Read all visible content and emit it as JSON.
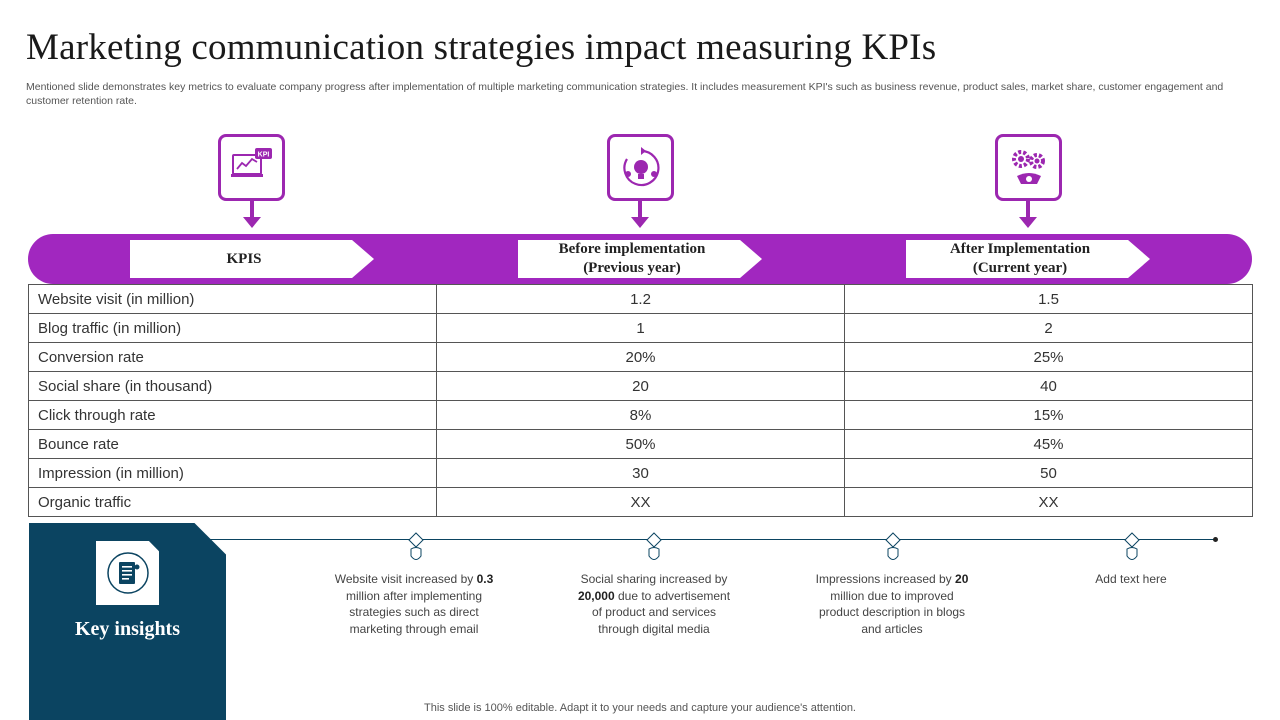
{
  "slide": {
    "title": "Marketing communication strategies impact measuring KPIs",
    "subtitle": "Mentioned slide demonstrates key metrics to evaluate company progress after implementation of multiple marketing communication strategies. It includes measurement KPI's such as business revenue, product sales, market share, customer engagement and customer retention rate.",
    "footer": "This slide is 100% editable. Adapt it to your needs and capture your audience's attention."
  },
  "icons": {
    "kpi_icon": "kpi-dashboard-icon",
    "kpi_icon_text": "KPI",
    "before_icon": "idea-cycle-icon",
    "after_icon": "gears-icon",
    "insights_icon": "document-icon"
  },
  "colors": {
    "accent": "#a127bf",
    "dark": "#0b4461"
  },
  "header": {
    "kpis": "KPIS",
    "before_line1": "Before implementation",
    "before_line2": "(Previous year)",
    "after_line1": "After Implementation",
    "after_line2": "(Current year)"
  },
  "table": {
    "rows": [
      {
        "kpi": "Website visit (in million)",
        "before": "1.2",
        "after": "1.5"
      },
      {
        "kpi": "Blog traffic (in million)",
        "before": "1",
        "after": "2"
      },
      {
        "kpi": "Conversion rate",
        "before": "20%",
        "after": "25%"
      },
      {
        "kpi": "Social share (in thousand)",
        "before": "20",
        "after": "40"
      },
      {
        "kpi": "Click through rate",
        "before": "8%",
        "after": "15%"
      },
      {
        "kpi": "Bounce rate",
        "before": "50%",
        "after": "45%"
      },
      {
        "kpi": "Impression (in million)",
        "before": "30",
        "after": "50"
      },
      {
        "kpi": "Organic traffic",
        "before": "XX",
        "after": "XX"
      }
    ]
  },
  "insights": {
    "title": "Key insights",
    "items": [
      {
        "pre": "Website visit increased by ",
        "bold": "0.3",
        "post": " million after implementing strategies such as direct marketing through email"
      },
      {
        "pre": "Social sharing increased by ",
        "bold": "20,000",
        "post": " due to advertisement of product and services through digital media"
      },
      {
        "pre": "Impressions increased by ",
        "bold": "20",
        "post": " million due to improved product description in blogs and articles"
      },
      {
        "pre": "Add text here",
        "bold": "",
        "post": ""
      }
    ]
  }
}
